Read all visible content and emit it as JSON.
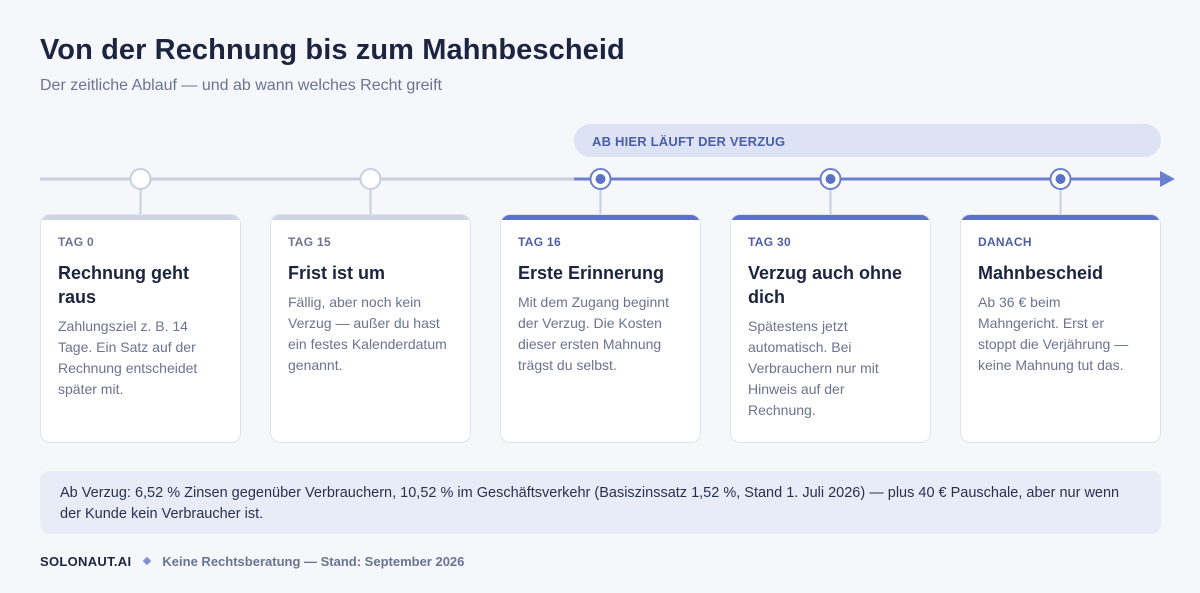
{
  "header": {
    "title": "Von der Rechnung bis zum Mahnbescheid",
    "subtitle": "Der zeitliche Ablauf — und ab wann welches Recht greift"
  },
  "verzug_band": {
    "label": "AB HIER LÄUFT DER VERZUG"
  },
  "steps": [
    {
      "day": "TAG 0",
      "heading": "Rechnung geht raus",
      "text": "Zahlungsziel z. B. 14 Tage. Ein Satz auf der Rechnung entscheidet später mit.",
      "active": false
    },
    {
      "day": "TAG 15",
      "heading": "Frist ist um",
      "text": "Fällig, aber noch kein Verzug — außer du hast ein festes Kalenderdatum genannt.",
      "active": false
    },
    {
      "day": "TAG 16",
      "heading": "Erste Erinnerung",
      "text": "Mit dem Zugang beginnt der Verzug. Die Kosten dieser ersten Mahnung trägst du selbst.",
      "active": true
    },
    {
      "day": "TAG 30",
      "heading": "Verzug auch ohne dich",
      "text": "Spätestens jetzt automatisch. Bei Verbrauchern nur mit Hinweis auf der Rechnung.",
      "active": true
    },
    {
      "day": "DANACH",
      "heading": "Mahnbescheid",
      "text": "Ab 36 € beim Mahngericht. Erst er stoppt die Verjährung — keine Mahnung tut das.",
      "active": true
    }
  ],
  "footnote": {
    "text": "Ab Verzug: 6,52 % Zinsen gegenüber Verbrauchern, 10,52 % im Geschäftsverkehr (Basiszinssatz 1,52 %, Stand 1. Juli 2026) — plus 40 € Pauschale, aber nur wenn der Kunde kein Verbraucher ist."
  },
  "footer": {
    "brand": "SOLONAUT.AI",
    "note": "Keine Rechtsberatung — Stand: September 2026"
  },
  "colors": {
    "inactive": "#cfd5e4",
    "active": "#5b72c6",
    "accent_text": "#4a5fa8"
  }
}
